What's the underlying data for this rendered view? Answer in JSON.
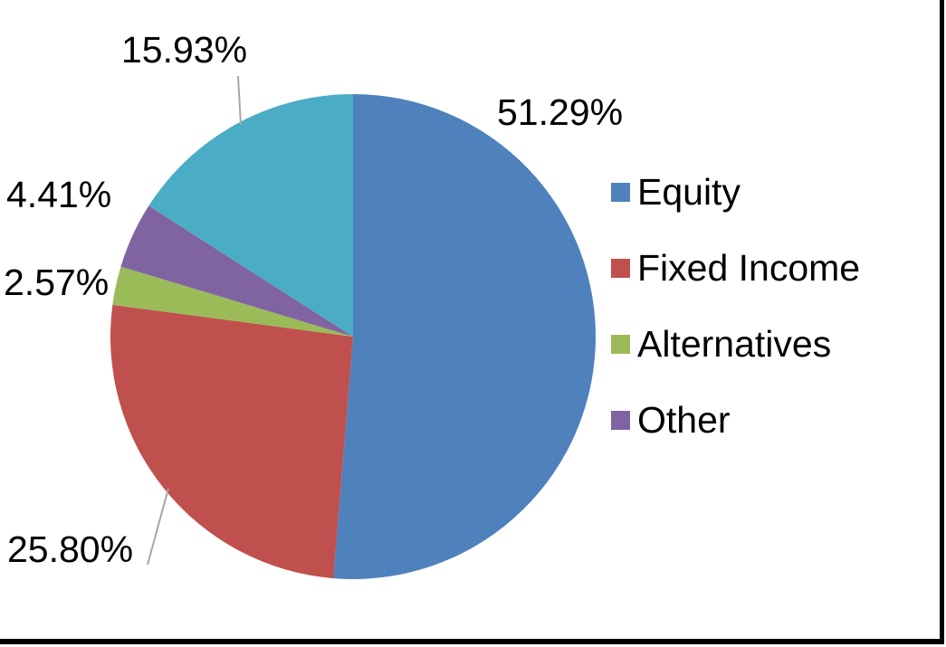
{
  "chart_data": {
    "type": "pie",
    "title": "",
    "direction": "clockwise",
    "start_angle_deg": 0,
    "slices": [
      {
        "name": "Equity",
        "value": 51.29,
        "label": "51.29%",
        "color": "#4F81BD"
      },
      {
        "name": "Fixed Income",
        "value": 25.8,
        "label": "25.80%",
        "color": "#C0504D"
      },
      {
        "name": "Alternatives",
        "value": 2.57,
        "label": "2.57%",
        "color": "#9BBB59"
      },
      {
        "name": "Other",
        "value": 4.41,
        "label": "4.41%",
        "color": "#8064A2"
      },
      {
        "name": "",
        "value": 15.93,
        "label": "15.93%",
        "color": "#4BACC6"
      }
    ],
    "legend": {
      "position": "right",
      "entries": [
        {
          "label": "Equity",
          "color": "#4F81BD"
        },
        {
          "label": "Fixed Income",
          "color": "#C0504D"
        },
        {
          "label": "Alternatives",
          "color": "#9BBB59"
        },
        {
          "label": "Other",
          "color": "#8064A2"
        }
      ]
    },
    "label_color": "#000000",
    "leader_line_color": "#A6A6A6",
    "background_color": "#FFFFFF",
    "frame_border_color": "#000000"
  }
}
